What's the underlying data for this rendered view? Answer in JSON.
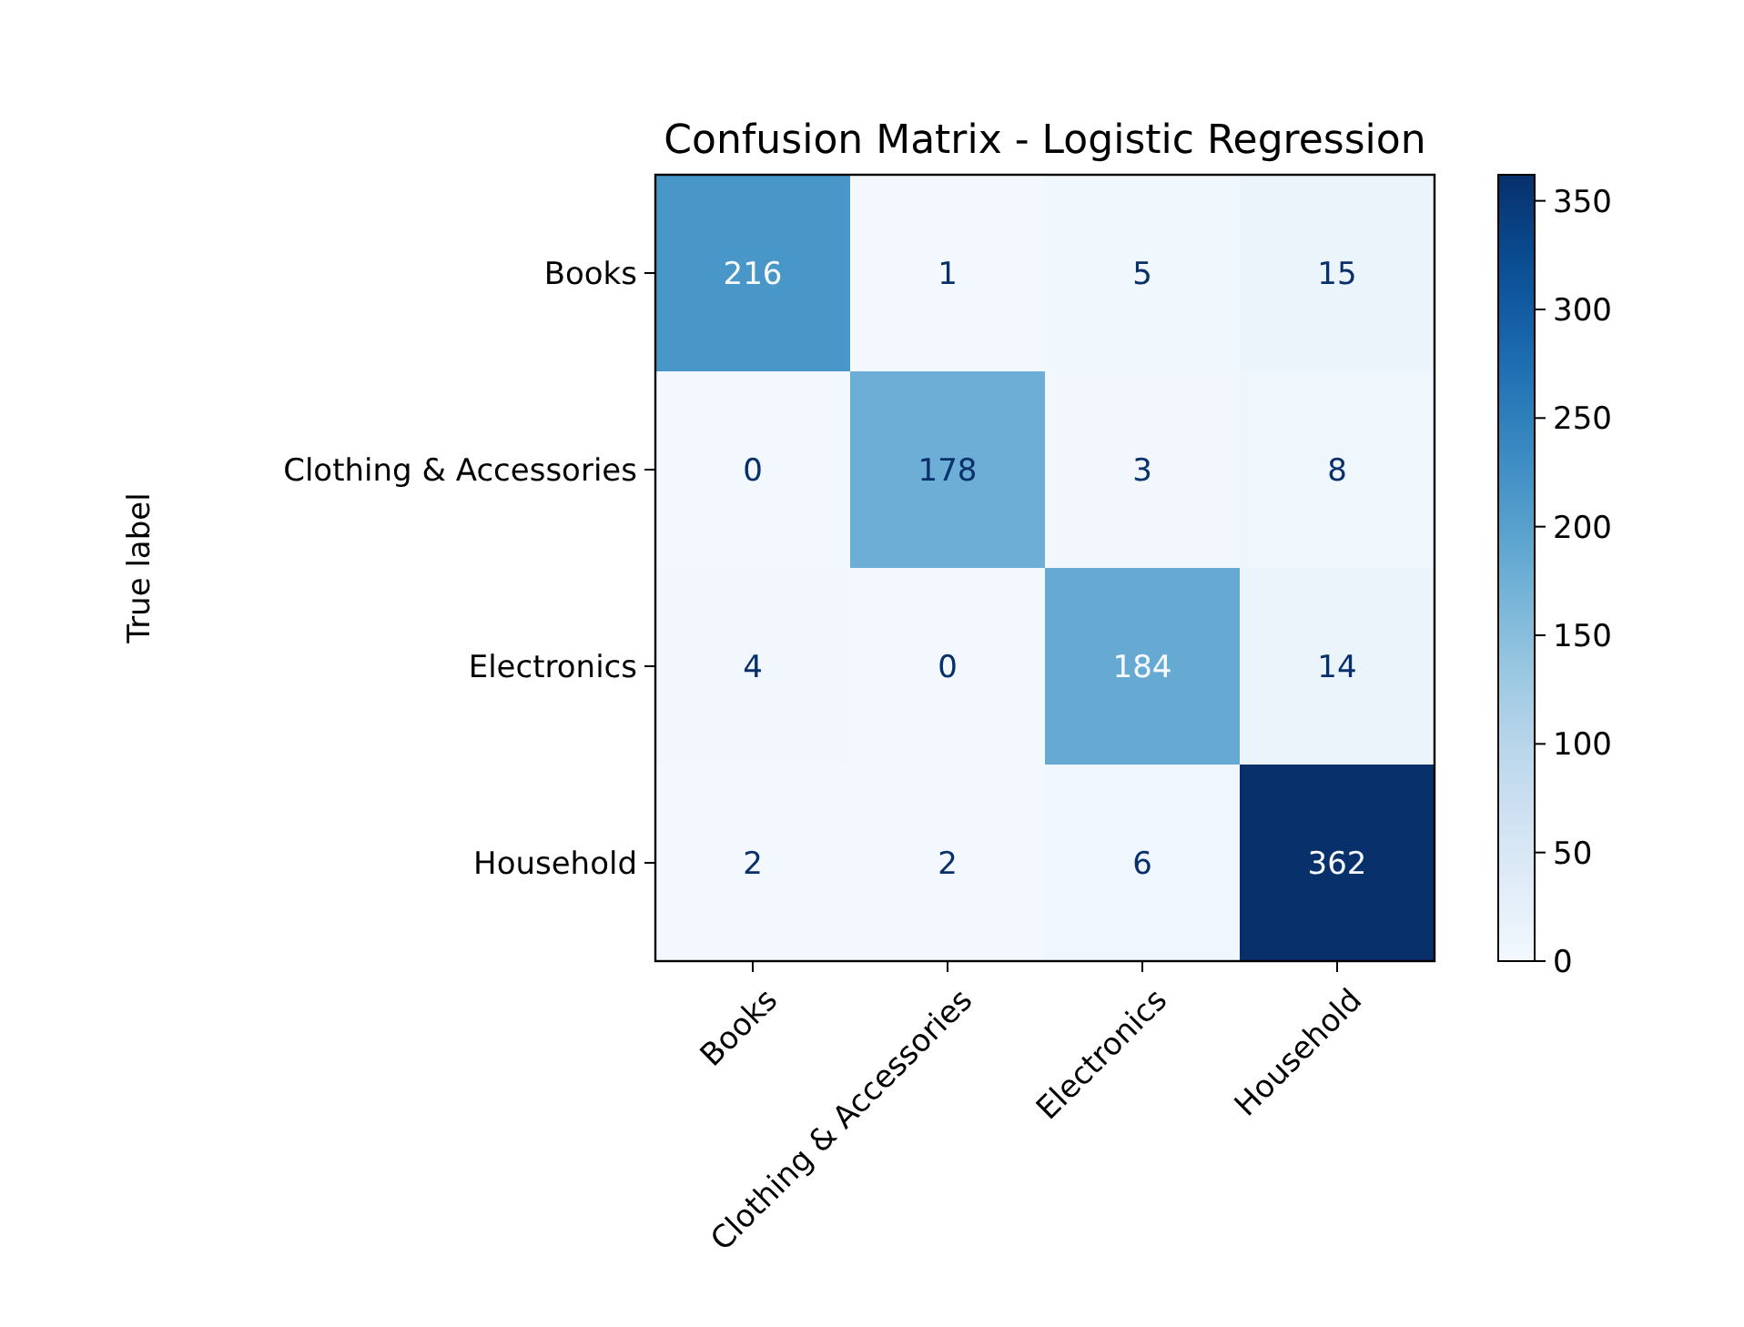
{
  "chart_data": {
    "type": "heatmap",
    "title": "Confusion Matrix - Logistic Regression",
    "ylabel": "True label",
    "categories": [
      "Books",
      "Clothing & Accessories",
      "Electronics",
      "Household"
    ],
    "y_categories": [
      "Books",
      "Clothing & Accessories",
      "Electronics",
      "Household"
    ],
    "cells": [
      [
        216,
        1,
        5,
        15
      ],
      [
        0,
        178,
        3,
        8
      ],
      [
        4,
        0,
        184,
        14
      ],
      [
        2,
        2,
        6,
        362
      ]
    ],
    "clim": [
      0,
      362
    ],
    "cticks": [
      0,
      50,
      100,
      150,
      200,
      250,
      300,
      350
    ],
    "data_labels": true
  }
}
